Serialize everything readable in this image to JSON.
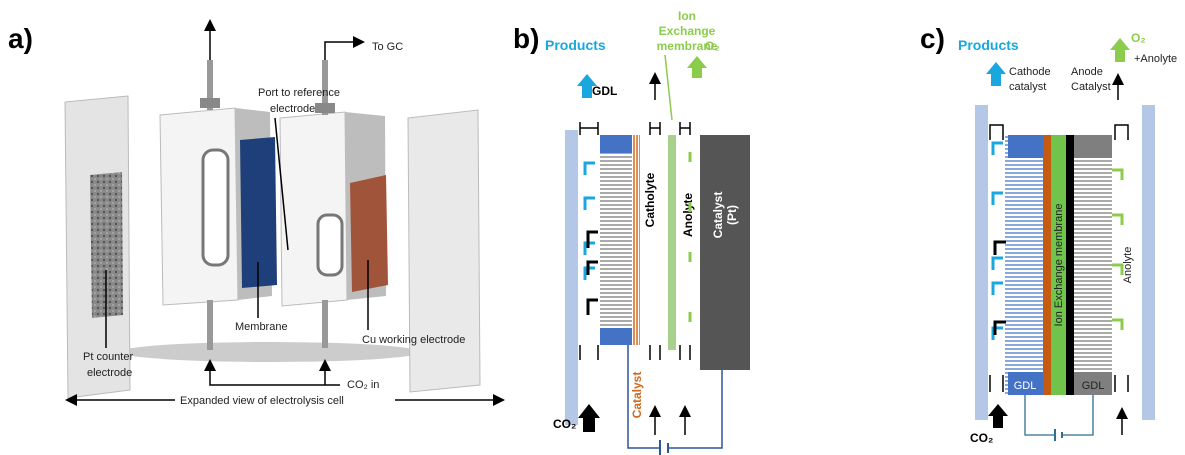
{
  "panel_a": {
    "label": "a)",
    "to_gc": "To GC",
    "port_label": [
      "Port to reference",
      "electrode"
    ],
    "membrane": "Membrane",
    "cu_electrode": "Cu working electrode",
    "pt_electrode": [
      "Pt counter",
      "electrode"
    ],
    "co2_in": "CO₂ in",
    "expanded_view": "Expanded view of electrolysis cell"
  },
  "panel_b": {
    "label": "b)",
    "products": "Products",
    "gdl": "GDL",
    "membrane_label": [
      "Ion",
      "Exchange",
      "membrane"
    ],
    "o2": "O₂",
    "catholyte": "Catholyte",
    "anolyte": "Anolyte",
    "catalyst_pt": [
      "Catalyst",
      "(Pt)"
    ],
    "co2": "CO₂",
    "catalyst": "Catalyst"
  },
  "panel_c": {
    "label": "c)",
    "products": "Products",
    "o2": "O₂",
    "plus_anolyte": "+Anolyte",
    "cathode_catalyst": [
      "Cathode",
      "catalyst"
    ],
    "anode_catalyst": [
      "Anode",
      "Catalyst"
    ],
    "membrane": "Ion Exchange membrane",
    "anolyte": "Anolyte",
    "gdl_left": "GDL",
    "gdl_right": "GDL",
    "co2": "CO₂"
  }
}
